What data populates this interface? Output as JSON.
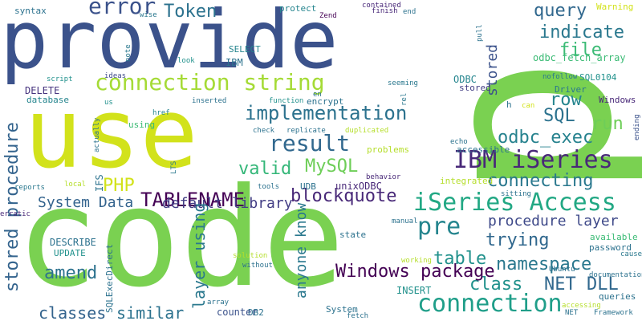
{
  "words": [
    {
      "text": "p",
      "color": "#7ad151",
      "rotated": true
    },
    {
      "text": "provide",
      "color": "#3b528b",
      "rotated": false
    },
    {
      "text": "use",
      "color": "#d2e21b",
      "rotated": false
    },
    {
      "text": "code",
      "color": "#7ad151",
      "rotated": false
    },
    {
      "text": "connection string",
      "color": "#a5db36",
      "rotated": false
    },
    {
      "text": "iSeries Access",
      "color": "#22a884",
      "rotated": false
    },
    {
      "text": "IBM iSeries",
      "color": "#482878",
      "rotated": false
    },
    {
      "text": "connection",
      "color": "#1f9e89",
      "rotated": false
    },
    {
      "text": "result",
      "color": "#31688e",
      "rotated": false
    },
    {
      "text": "implementation",
      "color": "#2c728e",
      "rotated": false
    },
    {
      "text": "error",
      "color": "#3b528b",
      "rotated": false
    },
    {
      "text": "pre",
      "color": "#25858e",
      "rotated": false
    },
    {
      "text": "TABLENAME",
      "color": "#440154",
      "rotated": false
    },
    {
      "text": "blockquote",
      "color": "#482878",
      "rotated": false
    },
    {
      "text": "odbc_exec",
      "color": "#26828e",
      "rotated": false
    },
    {
      "text": "connecting",
      "color": "#2a788e",
      "rotated": false
    },
    {
      "text": "MySQL",
      "color": "#6ece58",
      "rotated": false
    },
    {
      "text": "valid",
      "color": "#35b779",
      "rotated": false
    },
    {
      "text": "PHP",
      "color": "#d2e21b",
      "rotated": false
    },
    {
      "text": "amend",
      "color": "#2c728e",
      "rotated": false
    },
    {
      "text": "query",
      "color": "#31688e",
      "rotated": false
    },
    {
      "text": "indicate",
      "color": "#2a788e",
      "rotated": false
    },
    {
      "text": "file",
      "color": "#3bbb75",
      "rotated": false
    },
    {
      "text": "row",
      "color": "#25858e",
      "rotated": false
    },
    {
      "text": "SQL",
      "color": "#2c728e",
      "rotated": false
    },
    {
      "text": "run",
      "color": "#6ece58",
      "rotated": false
    },
    {
      "text": "Token",
      "color": "#2c728e",
      "rotated": false
    },
    {
      "text": "trying",
      "color": "#31688e",
      "rotated": false
    },
    {
      "text": "table",
      "color": "#21918c",
      "rotated": false
    },
    {
      "text": "namespace",
      "color": "#2a788e",
      "rotated": false
    },
    {
      "text": "class",
      "color": "#21918c",
      "rotated": false
    },
    {
      "text": "Windows package",
      "color": "#440154",
      "rotated": false
    },
    {
      "text": "NET DLL",
      "color": "#31688e",
      "rotated": false
    },
    {
      "text": "classes",
      "color": "#33638d",
      "rotated": false
    },
    {
      "text": "similar",
      "color": "#2c728e",
      "rotated": false
    },
    {
      "text": "procedure layer",
      "color": "#3e4989",
      "rotated": false
    },
    {
      "text": "System Data",
      "color": "#33638d",
      "rotated": false
    },
    {
      "text": "default library",
      "color": "#433e85",
      "rotated": false
    },
    {
      "text": "stored procedure",
      "color": "#33638d",
      "rotated": true
    },
    {
      "text": "layer using",
      "color": "#2a788e",
      "rotated": true
    },
    {
      "text": "anyone know",
      "color": "#2a788e",
      "rotated": true
    },
    {
      "text": "stored",
      "color": "#3b528b",
      "rotated": true
    },
    {
      "text": "syntax",
      "color": "#2c728e",
      "rotated": false
    },
    {
      "text": "wise",
      "color": "#2a788e",
      "rotated": false
    },
    {
      "text": "protect",
      "color": "#25858e",
      "rotated": false
    },
    {
      "text": "contained",
      "color": "#482878",
      "rotated": false
    },
    {
      "text": "finish",
      "color": "#482878",
      "rotated": false
    },
    {
      "text": "end",
      "color": "#2c728e",
      "rotated": false
    },
    {
      "text": "Warning",
      "color": "#d2e21b",
      "rotated": false
    },
    {
      "text": "Zend",
      "color": "#440154",
      "rotated": false
    },
    {
      "text": "odbc_fetch_array",
      "color": "#3bbb75",
      "rotated": false
    },
    {
      "text": "nofollow",
      "color": "#2a788e",
      "rotated": false
    },
    {
      "text": "SQL0104",
      "color": "#21918c",
      "rotated": false
    },
    {
      "text": "Driver",
      "color": "#2a788e",
      "rotated": false
    },
    {
      "text": "Windows",
      "color": "#482878",
      "rotated": false
    },
    {
      "text": "ODBC",
      "color": "#25858e",
      "rotated": false
    },
    {
      "text": "stored",
      "color": "#433e85",
      "rotated": false
    },
    {
      "text": "seeming",
      "color": "#2a788e",
      "rotated": false
    },
    {
      "text": "IBM",
      "color": "#2c728e",
      "rotated": false
    },
    {
      "text": "SELECT",
      "color": "#25858e",
      "rotated": false
    },
    {
      "text": "look",
      "color": "#21918c",
      "rotated": false
    },
    {
      "text": "note",
      "color": "#2a788e",
      "rotated": true
    },
    {
      "text": "ideas",
      "color": "#3e4989",
      "rotated": false
    },
    {
      "text": "script",
      "color": "#21918c",
      "rotated": false
    },
    {
      "text": "DELETE",
      "color": "#46337e",
      "rotated": false
    },
    {
      "text": "database",
      "color": "#25858e",
      "rotated": false
    },
    {
      "text": "us",
      "color": "#21918c",
      "rotated": false
    },
    {
      "text": "href",
      "color": "#25858e",
      "rotated": false
    },
    {
      "text": "using",
      "color": "#3bbb75",
      "rotated": false
    },
    {
      "text": "inserted",
      "color": "#2c728e",
      "rotated": false
    },
    {
      "text": "function",
      "color": "#21918c",
      "rotated": false
    },
    {
      "text": "en",
      "color": "#2c728e",
      "rotated": false
    },
    {
      "text": "encrypt",
      "color": "#2c728e",
      "rotated": false
    },
    {
      "text": "rel",
      "color": "#2a788e",
      "rotated": true
    },
    {
      "text": "pull",
      "color": "#2c728e",
      "rotated": true
    },
    {
      "text": "h",
      "color": "#2c728e",
      "rotated": false
    },
    {
      "text": "can",
      "color": "#d2e21b",
      "rotated": false
    },
    {
      "text": "check",
      "color": "#2c728e",
      "rotated": false
    },
    {
      "text": "replicate",
      "color": "#2c728e",
      "rotated": false
    },
    {
      "text": "duplicated",
      "color": "#b5de2b",
      "rotated": false
    },
    {
      "text": "echo",
      "color": "#2c728e",
      "rotated": false
    },
    {
      "text": "accessible",
      "color": "#2c728e",
      "rotated": false
    },
    {
      "text": "problems",
      "color": "#b5de2b",
      "rotated": false
    },
    {
      "text": "actually",
      "color": "#2c728e",
      "rotated": true
    },
    {
      "text": "LTS",
      "color": "#2a788e",
      "rotated": true
    },
    {
      "text": "ending",
      "color": "#3b528b",
      "rotated": true
    },
    {
      "text": "IFS",
      "color": "#2c728e",
      "rotated": true
    },
    {
      "text": "reports",
      "color": "#2a788e",
      "rotated": false
    },
    {
      "text": "local",
      "color": "#b5de2b",
      "rotated": false
    },
    {
      "text": "tools",
      "color": "#2c728e",
      "rotated": false
    },
    {
      "text": "UDB",
      "color": "#2c728e",
      "rotated": false
    },
    {
      "text": "unixODBC",
      "color": "#482878",
      "rotated": false
    },
    {
      "text": "behavior",
      "color": "#482878",
      "rotated": false
    },
    {
      "text": "integrated",
      "color": "#b5de2b",
      "rotated": false
    },
    {
      "text": "sitting",
      "color": "#2c728e",
      "rotated": false
    },
    {
      "text": "erratic",
      "color": "#482878",
      "rotated": false
    },
    {
      "text": "manual",
      "color": "#2c728e",
      "rotated": false
    },
    {
      "text": "state",
      "color": "#2c728e",
      "rotated": false
    },
    {
      "text": "available",
      "color": "#3bbb75",
      "rotated": false
    },
    {
      "text": "password",
      "color": "#2c728e",
      "rotated": false
    },
    {
      "text": "causes",
      "color": "#2a788e",
      "rotated": false
    },
    {
      "text": "DESCRIBE",
      "color": "#2c728e",
      "rotated": false
    },
    {
      "text": "UPDATE",
      "color": "#21918c",
      "rotated": false
    },
    {
      "text": "solution",
      "color": "#b5de2b",
      "rotated": false
    },
    {
      "text": "without",
      "color": "#2c728e",
      "rotated": false
    },
    {
      "text": "working",
      "color": "#b5de2b",
      "rotated": false
    },
    {
      "text": "Ubuntu",
      "color": "#2c728e",
      "rotated": false
    },
    {
      "text": "documentation",
      "color": "#2c728e",
      "rotated": false
    },
    {
      "text": "queries",
      "color": "#2c728e",
      "rotated": false
    },
    {
      "text": "accessing",
      "color": "#b5de2b",
      "rotated": false
    },
    {
      "text": "NET",
      "color": "#2c728e",
      "rotated": false
    },
    {
      "text": "Framework",
      "color": "#2c728e",
      "rotated": false
    },
    {
      "text": "INSERT",
      "color": "#21918c",
      "rotated": false
    },
    {
      "text": "System",
      "color": "#2c728e",
      "rotated": false
    },
    {
      "text": "fetch",
      "color": "#2c728e",
      "rotated": false
    },
    {
      "text": "DB2",
      "color": "#2c728e",
      "rotated": false
    },
    {
      "text": "counter",
      "color": "#3b528b",
      "rotated": false
    },
    {
      "text": "array",
      "color": "#2c728e",
      "rotated": false
    },
    {
      "text": "SQLExecDirect",
      "color": "#2c728e",
      "rotated": true
    }
  ]
}
